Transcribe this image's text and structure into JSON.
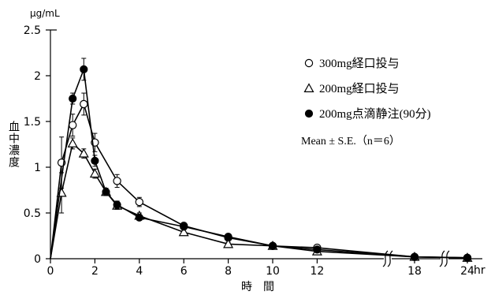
{
  "chart_data": {
    "type": "line",
    "unit_label": "μg/mL",
    "ylabel": "血中濃度",
    "xlabel": "時　間",
    "x_unit": "hr",
    "ylim": [
      0,
      2.5
    ],
    "y_ticks": [
      "0",
      "0.5",
      "1",
      "1.5",
      "2",
      "2.5"
    ],
    "x_ticks": [
      "0",
      "2",
      "4",
      "6",
      "8",
      "10",
      "12",
      "18",
      "24"
    ],
    "axis_breaks": [
      "12-18",
      "18-24"
    ],
    "grid": false,
    "legend_position": "right",
    "legend_note": "Mean ± S.E.（n＝6）",
    "series": [
      {
        "name": "300mg経口投与",
        "marker": "open-circle",
        "x": [
          0,
          0.5,
          1,
          1.5,
          2,
          3,
          4,
          6,
          8,
          10,
          12,
          18,
          24
        ],
        "y": [
          0,
          1.05,
          1.46,
          1.69,
          1.27,
          0.85,
          0.62,
          0.36,
          0.23,
          0.14,
          0.12,
          0.02,
          0.01
        ],
        "error": [
          0,
          0.28,
          0.12,
          0.12,
          0.1,
          0.07,
          0.05,
          0.03,
          0.03,
          0.02,
          0.02,
          0.01,
          0.01
        ]
      },
      {
        "name": "200mg経口投与",
        "marker": "open-triangle",
        "x": [
          0,
          0.5,
          1,
          1.5,
          2,
          2.5,
          3,
          4,
          6,
          8,
          10,
          12,
          18,
          24
        ],
        "y": [
          0,
          0.72,
          1.26,
          1.15,
          0.93,
          0.73,
          0.58,
          0.47,
          0.29,
          0.16,
          0.14,
          0.08,
          0.02,
          0.01
        ],
        "error": [
          0,
          0.22,
          0.06,
          0.05,
          0.05,
          0.04,
          0.04,
          0.03,
          0.03,
          0.02,
          0.02,
          0.02,
          0.01,
          0.01
        ]
      },
      {
        "name": "200mg点滴静注(90分)",
        "marker": "filled-circle",
        "x": [
          0,
          1,
          1.5,
          2,
          2.5,
          3,
          4,
          6,
          8,
          10,
          12,
          18,
          24
        ],
        "y": [
          0,
          1.75,
          2.07,
          1.07,
          0.73,
          0.59,
          0.45,
          0.35,
          0.24,
          0.14,
          0.1,
          0.02,
          0.01
        ],
        "error": [
          0,
          0.06,
          0.12,
          0.06,
          0.04,
          0.04,
          0.03,
          0.03,
          0.02,
          0.02,
          0.02,
          0.01,
          0.01
        ]
      }
    ]
  }
}
